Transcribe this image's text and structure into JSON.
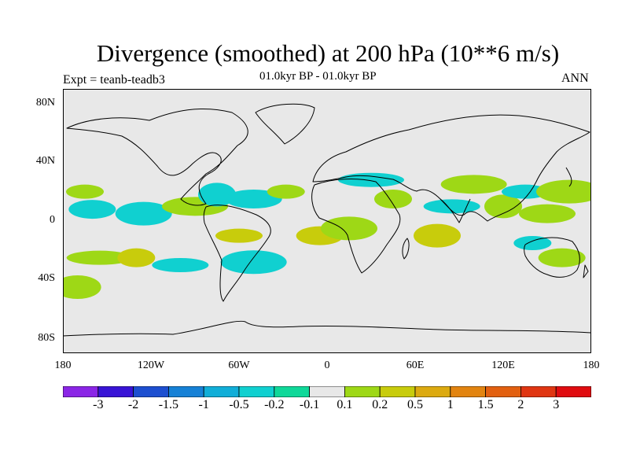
{
  "title": "Divergence (smoothed) at 200 hPa (10**6 m/s)",
  "subtitle": "01.0kyr BP - 01.0kyr BP",
  "expt": "Expt = teanb-teadb3",
  "season": "ANN",
  "lat_labels": [
    "80N",
    "40N",
    "0",
    "40S",
    "80S"
  ],
  "lon_labels": [
    "180",
    "120W",
    "60W",
    "0",
    "60E",
    "120E",
    "180"
  ],
  "colorbar": {
    "colors": [
      "#8b26e6",
      "#3814d6",
      "#1d4fd0",
      "#1681d6",
      "#11aed8",
      "#10d0d0",
      "#0fd899",
      "#e8e8e8",
      "#9ed816",
      "#c8cc0c",
      "#dcaa10",
      "#e28410",
      "#e26010",
      "#e03612",
      "#e00c10"
    ],
    "labels": [
      "-3",
      "-2",
      "-1.5",
      "-1",
      "-0.5",
      "-0.2",
      "-0.1",
      "0.1",
      "0.2",
      "0.5",
      "1",
      "1.5",
      "2",
      "3"
    ]
  },
  "chart_data": {
    "type": "heatmap",
    "title": "Divergence (smoothed) at 200 hPa (10**6 m/s)",
    "variable": "divergence anomaly at 200 hPa",
    "units": "10**6 m/s",
    "x_range": [
      -180,
      180
    ],
    "y_range": [
      -90,
      90
    ],
    "levels": [
      -3,
      -2,
      -1.5,
      -1,
      -0.5,
      -0.2,
      -0.1,
      0.1,
      0.2,
      0.5,
      1,
      1.5,
      2,
      3
    ],
    "background_value_range": [
      -0.1,
      0.1
    ],
    "features": [
      {
        "lon": -165,
        "lat": 20,
        "value": 0.2
      },
      {
        "lon": -160,
        "lat": 8,
        "value": -0.2
      },
      {
        "lon": -125,
        "lat": 5,
        "value": -0.2
      },
      {
        "lon": -155,
        "lat": -25,
        "value": 0.2
      },
      {
        "lon": -130,
        "lat": -25,
        "value": 0.5
      },
      {
        "lon": -170,
        "lat": -45,
        "value": 0.2
      },
      {
        "lon": -100,
        "lat": -30,
        "value": -0.2
      },
      {
        "lon": -90,
        "lat": 10,
        "value": 0.2
      },
      {
        "lon": -75,
        "lat": 18,
        "value": -0.2
      },
      {
        "lon": -60,
        "lat": -10,
        "value": 0.5
      },
      {
        "lon": -50,
        "lat": 15,
        "value": -0.2
      },
      {
        "lon": -50,
        "lat": -28,
        "value": -0.2
      },
      {
        "lon": -28,
        "lat": 20,
        "value": 0.2
      },
      {
        "lon": -5,
        "lat": -10,
        "value": 0.5
      },
      {
        "lon": 15,
        "lat": -5,
        "value": 0.2
      },
      {
        "lon": 30,
        "lat": 28,
        "value": -0.2
      },
      {
        "lon": 45,
        "lat": 15,
        "value": 0.2
      },
      {
        "lon": 75,
        "lat": -10,
        "value": 0.5
      },
      {
        "lon": 85,
        "lat": 10,
        "value": -0.2
      },
      {
        "lon": 100,
        "lat": 25,
        "value": 0.2
      },
      {
        "lon": 120,
        "lat": 10,
        "value": 0.2
      },
      {
        "lon": 135,
        "lat": 20,
        "value": -0.2
      },
      {
        "lon": 150,
        "lat": 5,
        "value": 0.2
      },
      {
        "lon": 165,
        "lat": 20,
        "value": 0.2
      },
      {
        "lon": 140,
        "lat": -15,
        "value": -0.2
      },
      {
        "lon": 160,
        "lat": -25,
        "value": 0.2
      }
    ]
  }
}
